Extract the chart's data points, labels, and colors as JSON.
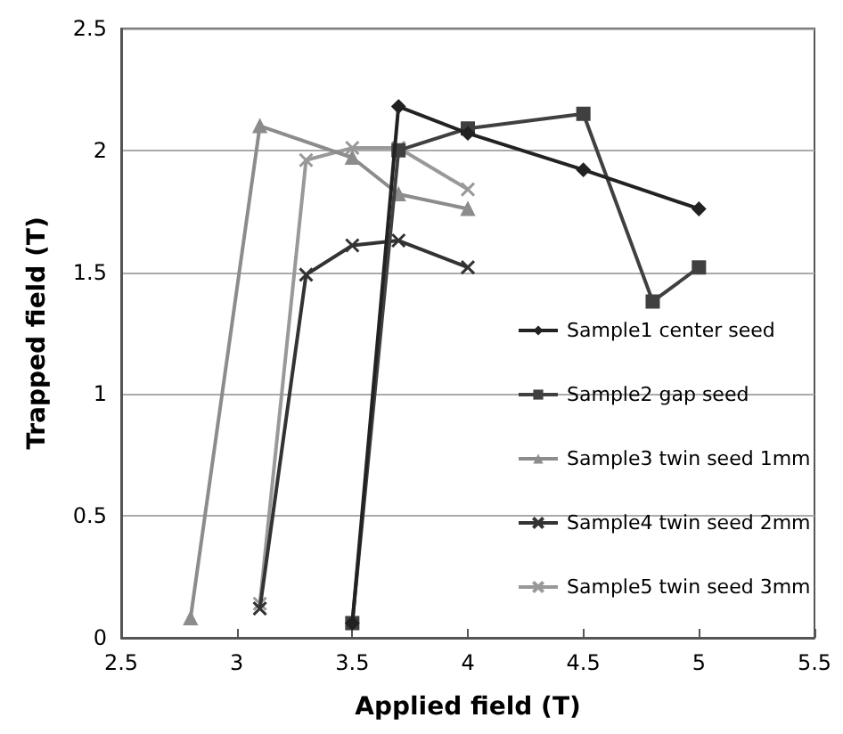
{
  "chart_data": {
    "type": "line",
    "xlabel": "Applied field (T)",
    "ylabel": "Trapped field (T)",
    "xlim": [
      2.5,
      5.5
    ],
    "xticks": [
      2.5,
      3,
      3.5,
      4,
      4.5,
      5,
      5.5
    ],
    "ylim": [
      0,
      2.5
    ],
    "yticks": [
      0,
      0.5,
      1,
      1.5,
      2,
      2.5
    ],
    "grid": "y",
    "legend": "right",
    "line_style": "solid",
    "series": [
      {
        "name": "Sample1 center seed",
        "color": "#222222",
        "marker": "diamond",
        "x": [
          3.5,
          3.7,
          4,
          4.5,
          5
        ],
        "values": [
          0.06,
          2.18,
          2.07,
          1.92,
          1.76
        ]
      },
      {
        "name": "Sample2 gap seed",
        "color": "#404040",
        "marker": "square",
        "x": [
          3.5,
          3.7,
          4,
          4.5,
          4.8,
          5
        ],
        "values": [
          0.06,
          2.0,
          2.09,
          2.15,
          1.38,
          1.52
        ]
      },
      {
        "name": "Sample3 twin seed 1mm",
        "color": "#8c8c8c",
        "marker": "triangle",
        "x": [
          2.8,
          3.1,
          3.5,
          3.7,
          4
        ],
        "values": [
          0.08,
          2.1,
          1.97,
          1.82,
          1.76
        ]
      },
      {
        "name": "Sample4 twin seed 2mm",
        "color": "#333333",
        "marker": "cross",
        "x": [
          3.1,
          3.3,
          3.5,
          3.7,
          4
        ],
        "values": [
          0.12,
          1.49,
          1.61,
          1.63,
          1.52
        ]
      },
      {
        "name": "Sample5 twin seed 3mm",
        "color": "#999999",
        "marker": "cross",
        "x": [
          3.1,
          3.3,
          3.5,
          3.7,
          4
        ],
        "values": [
          0.14,
          1.96,
          2.01,
          2.01,
          1.84
        ]
      }
    ]
  }
}
